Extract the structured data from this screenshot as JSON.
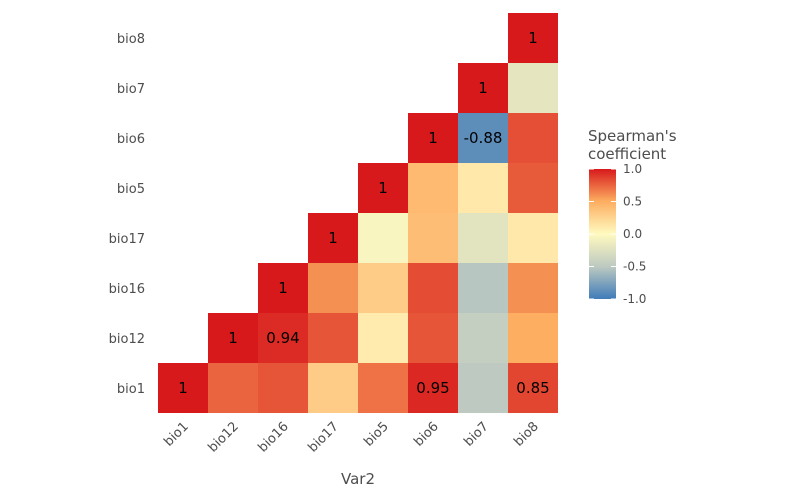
{
  "chart_data": {
    "type": "heatmap",
    "variables": [
      "bio1",
      "bio12",
      "bio16",
      "bio17",
      "bio5",
      "bio6",
      "bio7",
      "bio8"
    ],
    "xlabel": "Var2",
    "ylabel": "",
    "legend": {
      "title_line1": "Spearman's",
      "title_line2": "coefficient",
      "ticks": [
        "1.0",
        "0.5",
        "0.0",
        "-0.5",
        "-1.0"
      ],
      "tick_values": [
        1.0,
        0.5,
        0.0,
        -0.5,
        -1.0
      ],
      "range": [
        -1,
        1
      ],
      "position": "right"
    },
    "colors": {
      "low": "#3f7cb8",
      "mid": "#fffac0",
      "high": "#d7191c",
      "mid_low": "#bdc9c1",
      "mid_high": "#fdae61"
    },
    "cells": [
      {
        "x": "bio1",
        "y": "bio1",
        "value": 1,
        "label": "1"
      },
      {
        "x": "bio12",
        "y": "bio1",
        "value": 0.75
      },
      {
        "x": "bio16",
        "y": "bio1",
        "value": 0.8
      },
      {
        "x": "bio17",
        "y": "bio1",
        "value": 0.3
      },
      {
        "x": "bio5",
        "y": "bio1",
        "value": 0.7
      },
      {
        "x": "bio6",
        "y": "bio1",
        "value": 0.95,
        "label": "0.95"
      },
      {
        "x": "bio7",
        "y": "bio1",
        "value": -0.5
      },
      {
        "x": "bio8",
        "y": "bio1",
        "value": 0.85,
        "label": "0.85"
      },
      {
        "x": "bio12",
        "y": "bio12",
        "value": 1,
        "label": "1"
      },
      {
        "x": "bio16",
        "y": "bio12",
        "value": 0.94,
        "label": "0.94"
      },
      {
        "x": "bio17",
        "y": "bio12",
        "value": 0.8
      },
      {
        "x": "bio5",
        "y": "bio12",
        "value": 0.1
      },
      {
        "x": "bio6",
        "y": "bio12",
        "value": 0.8
      },
      {
        "x": "bio7",
        "y": "bio12",
        "value": -0.45
      },
      {
        "x": "bio8",
        "y": "bio12",
        "value": 0.5
      },
      {
        "x": "bio16",
        "y": "bio16",
        "value": 1,
        "label": "1"
      },
      {
        "x": "bio17",
        "y": "bio16",
        "value": 0.6
      },
      {
        "x": "bio5",
        "y": "bio16",
        "value": 0.3
      },
      {
        "x": "bio6",
        "y": "bio16",
        "value": 0.83
      },
      {
        "x": "bio7",
        "y": "bio16",
        "value": -0.52
      },
      {
        "x": "bio8",
        "y": "bio16",
        "value": 0.6
      },
      {
        "x": "bio17",
        "y": "bio17",
        "value": 1,
        "label": "1"
      },
      {
        "x": "bio5",
        "y": "bio17",
        "value": -0.05
      },
      {
        "x": "bio6",
        "y": "bio17",
        "value": 0.4
      },
      {
        "x": "bio7",
        "y": "bio17",
        "value": -0.22
      },
      {
        "x": "bio8",
        "y": "bio17",
        "value": 0.12
      },
      {
        "x": "bio5",
        "y": "bio5",
        "value": 1,
        "label": "1"
      },
      {
        "x": "bio6",
        "y": "bio5",
        "value": 0.42
      },
      {
        "x": "bio7",
        "y": "bio5",
        "value": 0.12
      },
      {
        "x": "bio8",
        "y": "bio5",
        "value": 0.78
      },
      {
        "x": "bio6",
        "y": "bio6",
        "value": 1,
        "label": "1"
      },
      {
        "x": "bio7",
        "y": "bio6",
        "value": -0.88,
        "label": "-0.88"
      },
      {
        "x": "bio8",
        "y": "bio6",
        "value": 0.82
      },
      {
        "x": "bio7",
        "y": "bio7",
        "value": 1,
        "label": "1"
      },
      {
        "x": "bio8",
        "y": "bio7",
        "value": -0.2
      },
      {
        "x": "bio8",
        "y": "bio8",
        "value": 1,
        "label": "1"
      }
    ]
  }
}
